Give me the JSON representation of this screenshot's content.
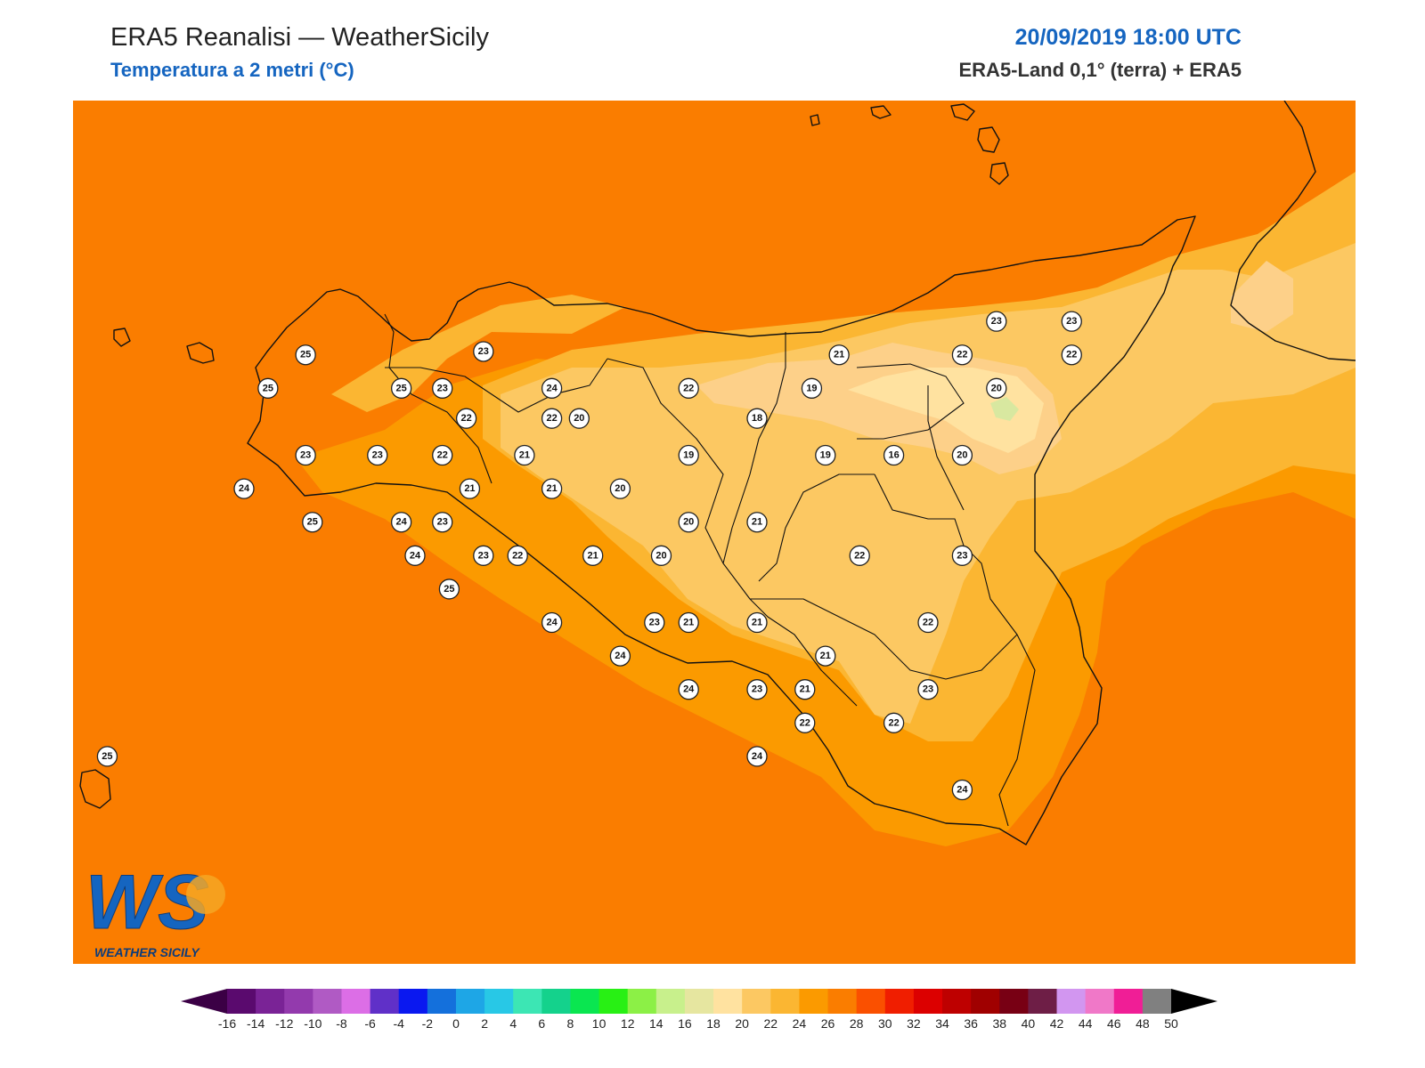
{
  "header": {
    "title": "ERA5 Reanalisi — WeatherSicily",
    "subtitle": "Temperatura a 2 metri (°C)",
    "datetime": "20/09/2019 18:00 UTC",
    "source": "ERA5-Land 0,1° (terra) + ERA5"
  },
  "logo": {
    "mark": "WS",
    "name": "WEATHER SICILY"
  },
  "colors": {
    "c18": "#ffe2a0",
    "c20": "#fcc862",
    "c22": "#fbb632",
    "c24": "#fb9a00",
    "c26": "#fa7d00"
  },
  "colorbar": {
    "min": -16,
    "max": 50,
    "step": 2,
    "ticks": [
      "-16",
      "-14",
      "-12",
      "-10",
      "-8",
      "-6",
      "-4",
      "-2",
      "0",
      "2",
      "4",
      "6",
      "8",
      "10",
      "12",
      "14",
      "16",
      "18",
      "20",
      "22",
      "24",
      "26",
      "28",
      "30",
      "32",
      "34",
      "36",
      "38",
      "40",
      "42",
      "44",
      "46",
      "48",
      "50"
    ],
    "colors": [
      "#3b0045",
      "#5a0a6e",
      "#7a2396",
      "#933aad",
      "#b05ac4",
      "#dc6ee6",
      "#6030c8",
      "#0a18f0",
      "#1470dc",
      "#1ea6e6",
      "#28c8e6",
      "#3ce6b4",
      "#14d28c",
      "#0ae650",
      "#28f014",
      "#8cf046",
      "#c8f08c",
      "#e6e6a0",
      "#ffe2a0",
      "#fcc862",
      "#fbb632",
      "#fb9a00",
      "#fa7d00",
      "#fa5000",
      "#f01e00",
      "#dc0000",
      "#be0000",
      "#a00000",
      "#780014",
      "#6e1e46",
      "#d296f0",
      "#f078c8",
      "#f01e96",
      "#808080",
      "#3c3c3c"
    ]
  },
  "stations": [
    {
      "label": "25",
      "lon": 12.58,
      "lat": 38.22
    },
    {
      "label": "23",
      "lon": 13.1,
      "lat": 38.23
    },
    {
      "label": "25",
      "lon": 12.47,
      "lat": 38.12
    },
    {
      "label": "25",
      "lon": 12.86,
      "lat": 38.12
    },
    {
      "label": "23",
      "lon": 12.98,
      "lat": 38.12
    },
    {
      "label": "24",
      "lon": 13.3,
      "lat": 38.12
    },
    {
      "label": "22",
      "lon": 13.05,
      "lat": 38.03
    },
    {
      "label": "22",
      "lon": 13.3,
      "lat": 38.03
    },
    {
      "label": "20",
      "lon": 13.38,
      "lat": 38.03
    },
    {
      "label": "22",
      "lon": 13.7,
      "lat": 38.12
    },
    {
      "label": "21",
      "lon": 14.14,
      "lat": 38.22
    },
    {
      "label": "22",
      "lon": 14.5,
      "lat": 38.22
    },
    {
      "label": "23",
      "lon": 14.6,
      "lat": 38.32
    },
    {
      "label": "23",
      "lon": 14.82,
      "lat": 38.32
    },
    {
      "label": "22",
      "lon": 14.82,
      "lat": 38.22
    },
    {
      "label": "19",
      "lon": 14.06,
      "lat": 38.12
    },
    {
      "label": "20",
      "lon": 14.6,
      "lat": 38.12
    },
    {
      "label": "18",
      "lon": 13.9,
      "lat": 38.03
    },
    {
      "label": "23",
      "lon": 12.58,
      "lat": 37.92
    },
    {
      "label": "23",
      "lon": 12.79,
      "lat": 37.92
    },
    {
      "label": "22",
      "lon": 12.98,
      "lat": 37.92
    },
    {
      "label": "21",
      "lon": 13.22,
      "lat": 37.92
    },
    {
      "label": "19",
      "lon": 13.7,
      "lat": 37.92
    },
    {
      "label": "19",
      "lon": 14.1,
      "lat": 37.92
    },
    {
      "label": "16",
      "lon": 14.3,
      "lat": 37.92
    },
    {
      "label": "20",
      "lon": 14.5,
      "lat": 37.92
    },
    {
      "label": "24",
      "lon": 12.4,
      "lat": 37.82
    },
    {
      "label": "21",
      "lon": 13.06,
      "lat": 37.82
    },
    {
      "label": "21",
      "lon": 13.3,
      "lat": 37.82
    },
    {
      "label": "20",
      "lon": 13.5,
      "lat": 37.82
    },
    {
      "label": "25",
      "lon": 12.6,
      "lat": 37.72
    },
    {
      "label": "24",
      "lon": 12.86,
      "lat": 37.72
    },
    {
      "label": "23",
      "lon": 12.98,
      "lat": 37.72
    },
    {
      "label": "20",
      "lon": 13.7,
      "lat": 37.72
    },
    {
      "label": "21",
      "lon": 13.9,
      "lat": 37.72
    },
    {
      "label": "24",
      "lon": 12.9,
      "lat": 37.62
    },
    {
      "label": "23",
      "lon": 13.1,
      "lat": 37.62
    },
    {
      "label": "22",
      "lon": 13.2,
      "lat": 37.62
    },
    {
      "label": "21",
      "lon": 13.42,
      "lat": 37.62
    },
    {
      "label": "20",
      "lon": 13.62,
      "lat": 37.62
    },
    {
      "label": "22",
      "lon": 14.2,
      "lat": 37.62
    },
    {
      "label": "23",
      "lon": 14.5,
      "lat": 37.62
    },
    {
      "label": "25",
      "lon": 13.0,
      "lat": 37.52
    },
    {
      "label": "24",
      "lon": 13.3,
      "lat": 37.42
    },
    {
      "label": "23",
      "lon": 13.6,
      "lat": 37.42
    },
    {
      "label": "21",
      "lon": 13.7,
      "lat": 37.42
    },
    {
      "label": "21",
      "lon": 13.9,
      "lat": 37.42
    },
    {
      "label": "22",
      "lon": 14.4,
      "lat": 37.42
    },
    {
      "label": "24",
      "lon": 13.5,
      "lat": 37.32
    },
    {
      "label": "21",
      "lon": 14.1,
      "lat": 37.32
    },
    {
      "label": "24",
      "lon": 13.7,
      "lat": 37.22
    },
    {
      "label": "23",
      "lon": 13.9,
      "lat": 37.22
    },
    {
      "label": "21",
      "lon": 14.04,
      "lat": 37.22
    },
    {
      "label": "23",
      "lon": 14.4,
      "lat": 37.22
    },
    {
      "label": "22",
      "lon": 14.04,
      "lat": 37.12
    },
    {
      "label": "22",
      "lon": 14.3,
      "lat": 37.12
    },
    {
      "label": "24",
      "lon": 13.9,
      "lat": 37.02
    },
    {
      "label": "24",
      "lon": 14.5,
      "lat": 36.92
    },
    {
      "label": "25",
      "lon": 12.0,
      "lat": 37.02
    }
  ]
}
